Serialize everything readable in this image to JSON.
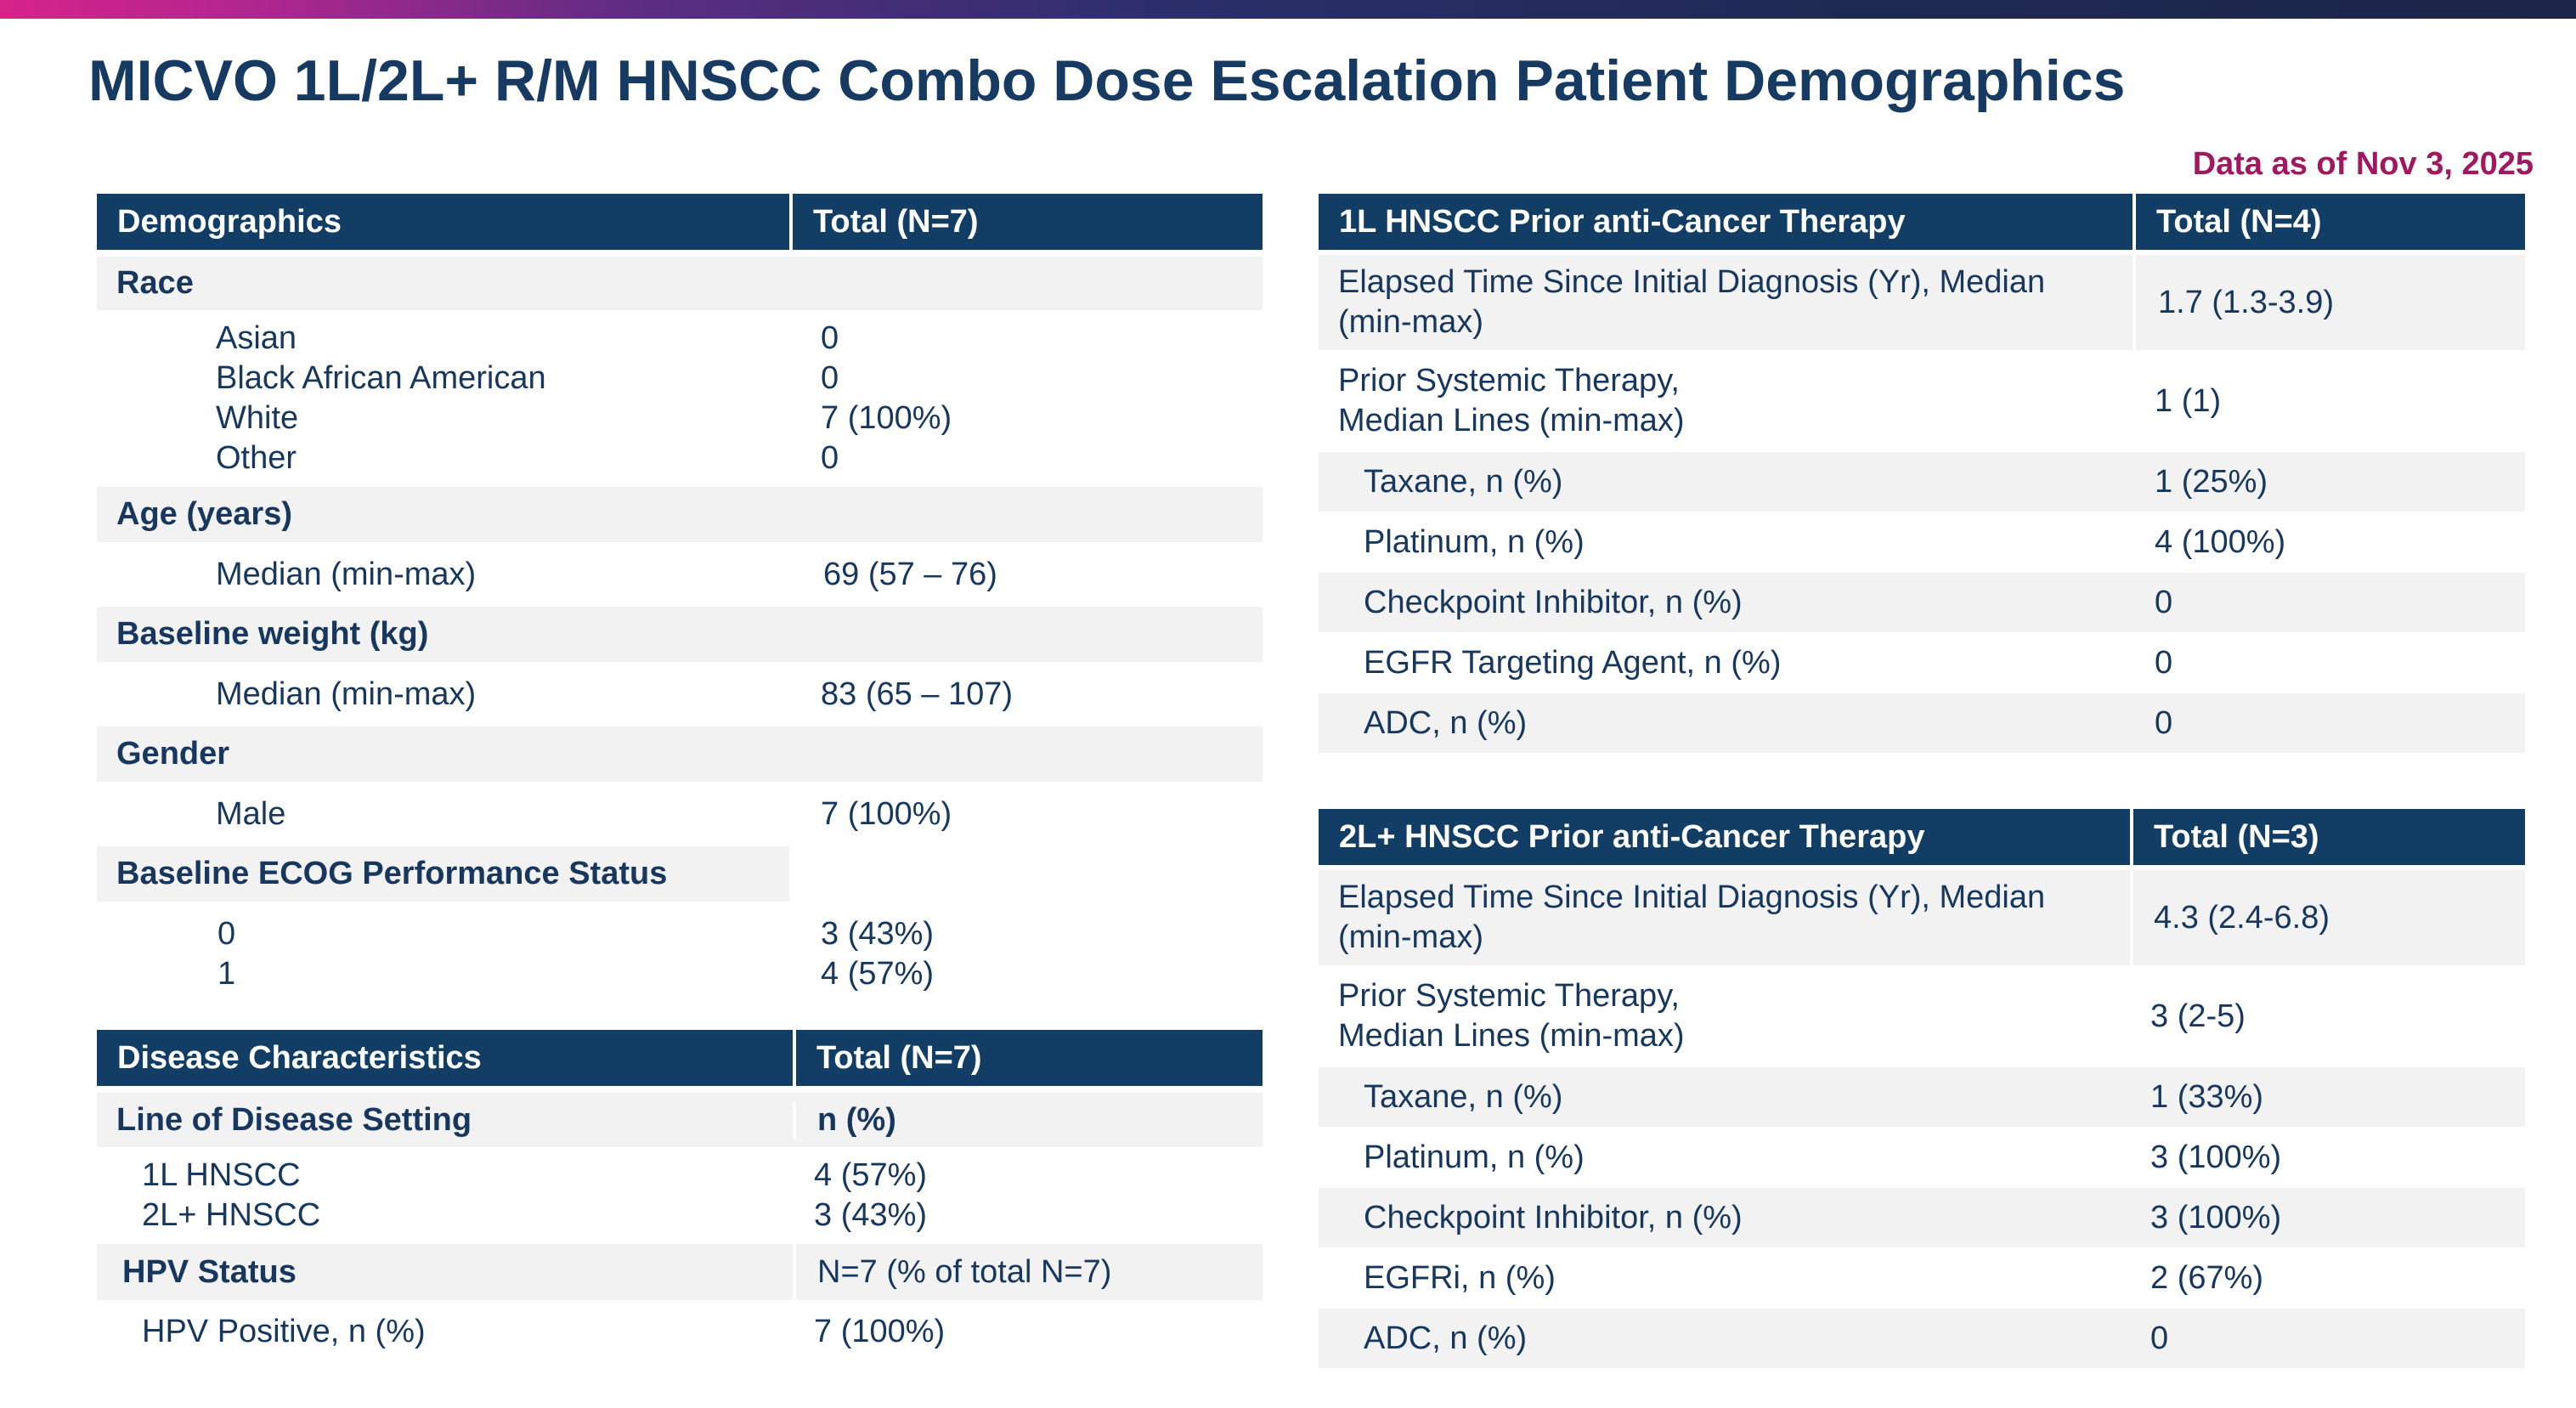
{
  "title": "MICVO 1L/2L+ R/M HNSCC Combo Dose Escalation Patient Demographics",
  "data_as_of": "Data as of Nov 3, 2025",
  "demographics": {
    "header": [
      "Demographics",
      "Total (N=7)"
    ],
    "race": {
      "label": "Race",
      "items": [
        {
          "label": "Asian",
          "value": "0"
        },
        {
          "label": "Black African American",
          "value": "0"
        },
        {
          "label": "White",
          "value": "7 (100%)"
        },
        {
          "label": "Other",
          "value": "0"
        }
      ]
    },
    "age": {
      "label": "Age (years)",
      "item": {
        "label": "Median (min-max)",
        "value": "69 (57 – 76)"
      }
    },
    "weight": {
      "label": "Baseline weight (kg)",
      "item": {
        "label": "Median (min-max)",
        "value": "83 (65 – 107)"
      }
    },
    "gender": {
      "label": "Gender",
      "item": {
        "label": "Male",
        "value": "7 (100%)"
      }
    },
    "ecog": {
      "label": "Baseline ECOG Performance Status",
      "items": [
        {
          "label": "0",
          "value": "3 (43%)"
        },
        {
          "label": "1",
          "value": "4 (57%)"
        }
      ]
    }
  },
  "disease": {
    "header": [
      "Disease Characteristics",
      "Total (N=7)"
    ],
    "line_of_disease": {
      "label": "Line of Disease Setting",
      "value_label": "n (%)",
      "items": [
        {
          "label": "1L HNSCC",
          "value": "4 (57%)"
        },
        {
          "label": "2L+ HNSCC",
          "value": "3 (43%)"
        }
      ]
    },
    "hpv": {
      "label": "HPV Status",
      "value_label": "N=7 (% of total N=7)",
      "item": {
        "label": "HPV Positive, n (%)",
        "value": "7 (100%)"
      }
    }
  },
  "prior_1l": {
    "header": [
      "1L HNSCC Prior anti-Cancer Therapy",
      "Total (N=4)"
    ],
    "elapsed": {
      "label_1": "Elapsed Time Since Initial Diagnosis (Yr), Median",
      "label_2": "(min-max)",
      "value": "1.7 (1.3-3.9)"
    },
    "systemic": {
      "label_1": "Prior Systemic Therapy,",
      "label_2": "Median Lines (min-max)",
      "value": "1 (1)"
    },
    "rows": [
      {
        "label": "Taxane, n (%)",
        "value": "1 (25%)"
      },
      {
        "label": "Platinum, n (%)",
        "value": "4 (100%)"
      },
      {
        "label": "Checkpoint Inhibitor, n (%)",
        "value": "0"
      },
      {
        "label": "EGFR Targeting Agent, n (%)",
        "value": "0"
      },
      {
        "label": "ADC, n (%)",
        "value": "0"
      }
    ]
  },
  "prior_2l": {
    "header": [
      "2L+ HNSCC Prior anti-Cancer Therapy",
      "Total (N=3)"
    ],
    "elapsed": {
      "label_1": "Elapsed Time Since Initial Diagnosis (Yr), Median",
      "label_2": "(min-max)",
      "value": "4.3 (2.4-6.8)"
    },
    "systemic": {
      "label_1": "Prior Systemic Therapy,",
      "label_2": "Median Lines (min-max)",
      "value": "3 (2-5)"
    },
    "rows": [
      {
        "label": "Taxane, n (%)",
        "value": "1 (33%)"
      },
      {
        "label": "Platinum, n (%)",
        "value": "3 (100%)"
      },
      {
        "label": "Checkpoint Inhibitor, n (%)",
        "value": "3 (100%)"
      },
      {
        "label": "EGFRi, n (%)",
        "value": "2 (67%)"
      },
      {
        "label": "ADC, n (%)",
        "value": "0"
      }
    ]
  }
}
